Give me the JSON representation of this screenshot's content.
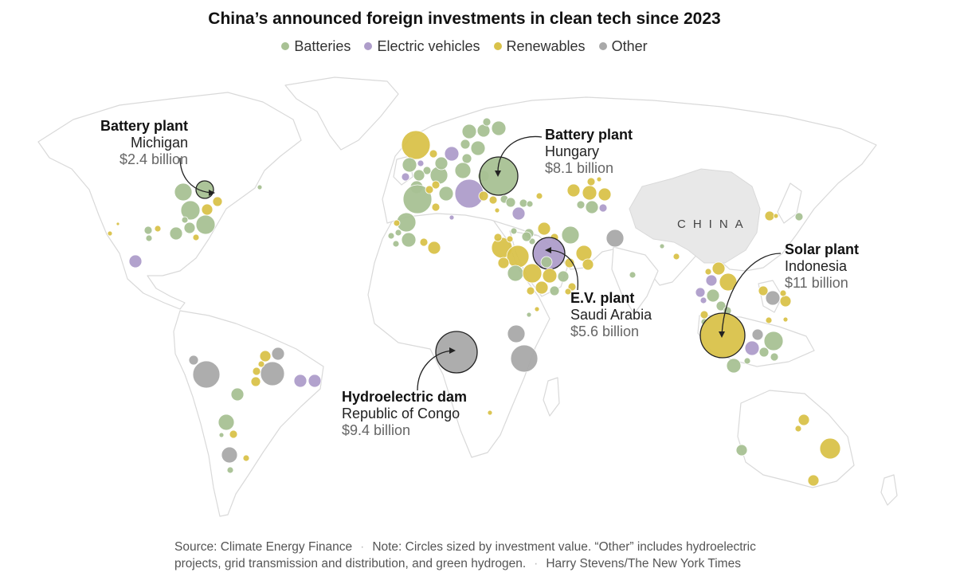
{
  "title": "China’s announced foreign investments in clean tech since 2023",
  "legend": [
    {
      "label": "Batteries",
      "color": "#a8c194"
    },
    {
      "label": "Electric vehicles",
      "color": "#ae9dca"
    },
    {
      "label": "Renewables",
      "color": "#d9c24a"
    },
    {
      "label": "Other",
      "color": "#a9a9a9"
    }
  ],
  "china_label": "CHINA",
  "annotations": {
    "michigan": {
      "title": "Battery plant",
      "place": "Michigan",
      "value": "$2.4 billion",
      "category": "Batteries"
    },
    "hungary": {
      "title": "Battery plant",
      "place": "Hungary",
      "value": "$8.1 billion",
      "category": "Batteries"
    },
    "indonesia": {
      "title": "Solar plant",
      "place": "Indonesia",
      "value": "$11 billion",
      "category": "Renewables"
    },
    "saudi": {
      "title": "E.V. plant",
      "place": "Saudi Arabia",
      "value": "$5.6 billion",
      "category": "Electric vehicles"
    },
    "congo": {
      "title": "Hydroelectric dam",
      "place": "Republic of Congo",
      "value": "$9.4 billion",
      "category": "Other"
    }
  },
  "footer": {
    "source": "Source: Climate Energy Finance",
    "note": "Note: Circles sized by investment value. “Other” includes hydroelectric projects, grid transmission and distribution, and green hydrogen.",
    "credit": "Harry Stevens/The New York Times"
  }
}
